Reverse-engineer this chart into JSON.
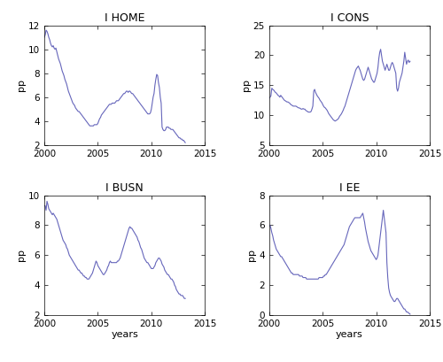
{
  "title_HOME": "I HOME",
  "title_CONS": "I CONS",
  "title_BUSN": "I BUSN",
  "title_EE": "I EE",
  "ylabel": "pp",
  "xlabel": "years",
  "line_color": "#6666bb",
  "xlim": [
    2000,
    2015
  ],
  "HOME_x": [
    2000.0,
    2000.083,
    2000.167,
    2000.25,
    2000.333,
    2000.417,
    2000.5,
    2000.583,
    2000.667,
    2000.75,
    2000.833,
    2000.917,
    2001.0,
    2001.083,
    2001.167,
    2001.25,
    2001.333,
    2001.417,
    2001.5,
    2001.583,
    2001.667,
    2001.75,
    2001.833,
    2001.917,
    2002.0,
    2002.083,
    2002.167,
    2002.25,
    2002.333,
    2002.417,
    2002.5,
    2002.583,
    2002.667,
    2002.75,
    2002.833,
    2002.917,
    2003.0,
    2003.083,
    2003.167,
    2003.25,
    2003.333,
    2003.417,
    2003.5,
    2003.583,
    2003.667,
    2003.75,
    2003.833,
    2003.917,
    2004.0,
    2004.083,
    2004.167,
    2004.25,
    2004.333,
    2004.417,
    2004.5,
    2004.583,
    2004.667,
    2004.75,
    2004.833,
    2004.917,
    2005.0,
    2005.083,
    2005.167,
    2005.25,
    2005.333,
    2005.417,
    2005.5,
    2005.583,
    2005.667,
    2005.75,
    2005.833,
    2005.917,
    2006.0,
    2006.083,
    2006.167,
    2006.25,
    2006.333,
    2006.417,
    2006.5,
    2006.583,
    2006.667,
    2006.75,
    2006.833,
    2006.917,
    2007.0,
    2007.083,
    2007.167,
    2007.25,
    2007.333,
    2007.417,
    2007.5,
    2007.583,
    2007.667,
    2007.75,
    2007.833,
    2007.917,
    2008.0,
    2008.083,
    2008.167,
    2008.25,
    2008.333,
    2008.417,
    2008.5,
    2008.583,
    2008.667,
    2008.75,
    2008.833,
    2008.917,
    2009.0,
    2009.083,
    2009.167,
    2009.25,
    2009.333,
    2009.417,
    2009.5,
    2009.583,
    2009.667,
    2009.75,
    2009.833,
    2009.917,
    2010.0,
    2010.083,
    2010.167,
    2010.25,
    2010.333,
    2010.417,
    2010.5,
    2010.583,
    2010.667,
    2010.75,
    2010.833,
    2010.917,
    2011.0,
    2011.083,
    2011.167,
    2011.25,
    2011.333,
    2011.417,
    2011.5,
    2011.583,
    2011.667,
    2011.75,
    2011.833,
    2011.917,
    2012.0,
    2012.083,
    2012.167,
    2012.25,
    2012.333,
    2012.417,
    2012.5,
    2012.583,
    2012.667,
    2012.75,
    2012.833,
    2012.917,
    2013.0,
    2013.083,
    2013.167
  ],
  "HOME_y": [
    11.0,
    11.2,
    11.6,
    11.5,
    11.3,
    11.0,
    10.8,
    10.5,
    10.3,
    10.2,
    10.3,
    10.1,
    10.0,
    10.1,
    9.8,
    9.5,
    9.2,
    9.0,
    8.8,
    8.5,
    8.2,
    8.0,
    7.8,
    7.5,
    7.3,
    7.1,
    6.8,
    6.5,
    6.3,
    6.1,
    5.9,
    5.7,
    5.5,
    5.4,
    5.3,
    5.1,
    5.0,
    4.9,
    4.8,
    4.8,
    4.7,
    4.6,
    4.5,
    4.4,
    4.3,
    4.2,
    4.1,
    4.0,
    3.9,
    3.8,
    3.7,
    3.6,
    3.6,
    3.6,
    3.6,
    3.6,
    3.7,
    3.7,
    3.7,
    3.7,
    3.8,
    4.0,
    4.2,
    4.3,
    4.5,
    4.6,
    4.7,
    4.8,
    4.9,
    5.0,
    5.1,
    5.2,
    5.3,
    5.4,
    5.4,
    5.4,
    5.5,
    5.5,
    5.5,
    5.5,
    5.6,
    5.7,
    5.7,
    5.7,
    5.8,
    5.9,
    6.0,
    6.1,
    6.2,
    6.3,
    6.3,
    6.4,
    6.5,
    6.5,
    6.4,
    6.5,
    6.5,
    6.4,
    6.3,
    6.3,
    6.2,
    6.1,
    6.0,
    5.9,
    5.8,
    5.7,
    5.6,
    5.5,
    5.4,
    5.3,
    5.2,
    5.1,
    5.0,
    4.9,
    4.8,
    4.7,
    4.6,
    4.6,
    4.6,
    4.7,
    5.0,
    5.5,
    6.0,
    6.3,
    7.0,
    7.5,
    7.9,
    7.8,
    7.2,
    6.8,
    6.0,
    5.5,
    3.5,
    3.3,
    3.2,
    3.2,
    3.3,
    3.5,
    3.5,
    3.5,
    3.4,
    3.4,
    3.3,
    3.3,
    3.3,
    3.2,
    3.1,
    3.0,
    2.9,
    2.8,
    2.7,
    2.6,
    2.6,
    2.5,
    2.5,
    2.4,
    2.4,
    2.3,
    2.2
  ],
  "HOME_ylim": [
    2,
    12
  ],
  "HOME_yticks": [
    2,
    4,
    6,
    8,
    10,
    12
  ],
  "CONS_x": [
    2000.0,
    2000.083,
    2000.167,
    2000.25,
    2000.333,
    2000.417,
    2000.5,
    2000.583,
    2000.667,
    2000.75,
    2000.833,
    2000.917,
    2001.0,
    2001.083,
    2001.167,
    2001.25,
    2001.333,
    2001.417,
    2001.5,
    2001.583,
    2001.667,
    2001.75,
    2001.833,
    2001.917,
    2002.0,
    2002.083,
    2002.167,
    2002.25,
    2002.333,
    2002.417,
    2002.5,
    2002.583,
    2002.667,
    2002.75,
    2002.833,
    2002.917,
    2003.0,
    2003.083,
    2003.167,
    2003.25,
    2003.333,
    2003.417,
    2003.5,
    2003.583,
    2003.667,
    2003.75,
    2003.833,
    2003.917,
    2004.0,
    2004.083,
    2004.167,
    2004.25,
    2004.333,
    2004.417,
    2004.5,
    2004.583,
    2004.667,
    2004.75,
    2004.833,
    2004.917,
    2005.0,
    2005.083,
    2005.167,
    2005.25,
    2005.333,
    2005.417,
    2005.5,
    2005.583,
    2005.667,
    2005.75,
    2005.833,
    2005.917,
    2006.0,
    2006.083,
    2006.167,
    2006.25,
    2006.333,
    2006.417,
    2006.5,
    2006.583,
    2006.667,
    2006.75,
    2006.833,
    2006.917,
    2007.0,
    2007.083,
    2007.167,
    2007.25,
    2007.333,
    2007.417,
    2007.5,
    2007.583,
    2007.667,
    2007.75,
    2007.833,
    2007.917,
    2008.0,
    2008.083,
    2008.167,
    2008.25,
    2008.333,
    2008.417,
    2008.5,
    2008.583,
    2008.667,
    2008.75,
    2008.833,
    2008.917,
    2009.0,
    2009.083,
    2009.167,
    2009.25,
    2009.333,
    2009.417,
    2009.5,
    2009.583,
    2009.667,
    2009.75,
    2009.833,
    2009.917,
    2010.0,
    2010.083,
    2010.167,
    2010.25,
    2010.333,
    2010.417,
    2010.5,
    2010.583,
    2010.667,
    2010.75,
    2010.833,
    2010.917,
    2011.0,
    2011.083,
    2011.167,
    2011.25,
    2011.333,
    2011.417,
    2011.5,
    2011.583,
    2011.667,
    2011.75,
    2011.833,
    2011.917,
    2012.0,
    2012.083,
    2012.167,
    2012.25,
    2012.333,
    2012.417,
    2012.5,
    2012.583,
    2012.667,
    2012.75,
    2012.833,
    2012.917,
    2013.0,
    2013.083,
    2013.167
  ],
  "CONS_y": [
    12.8,
    13.0,
    13.2,
    14.5,
    14.3,
    14.2,
    14.0,
    13.8,
    13.7,
    13.5,
    13.3,
    13.2,
    13.0,
    13.3,
    13.1,
    12.9,
    12.7,
    12.5,
    12.4,
    12.3,
    12.2,
    12.2,
    12.1,
    12.0,
    11.8,
    11.7,
    11.6,
    11.5,
    11.5,
    11.5,
    11.5,
    11.4,
    11.3,
    11.2,
    11.2,
    11.1,
    11.0,
    11.0,
    11.1,
    11.0,
    11.0,
    10.8,
    10.7,
    10.6,
    10.5,
    10.5,
    10.5,
    10.6,
    11.0,
    11.5,
    14.0,
    14.3,
    13.8,
    13.5,
    13.2,
    13.0,
    12.8,
    12.5,
    12.3,
    12.1,
    11.8,
    11.5,
    11.3,
    11.2,
    11.0,
    10.8,
    10.5,
    10.2,
    10.0,
    9.8,
    9.6,
    9.4,
    9.2,
    9.1,
    9.0,
    9.1,
    9.2,
    9.3,
    9.5,
    9.8,
    10.0,
    10.2,
    10.5,
    10.8,
    11.2,
    11.5,
    12.0,
    12.5,
    13.0,
    13.5,
    14.0,
    14.5,
    15.0,
    15.5,
    16.0,
    16.5,
    17.0,
    17.5,
    17.8,
    18.0,
    18.2,
    17.8,
    17.5,
    17.0,
    16.5,
    16.0,
    15.8,
    16.0,
    16.5,
    17.0,
    17.5,
    18.0,
    17.5,
    17.0,
    16.5,
    16.0,
    15.8,
    15.5,
    15.5,
    16.0,
    16.5,
    17.0,
    18.0,
    19.5,
    20.5,
    21.0,
    20.0,
    19.0,
    18.5,
    18.0,
    17.5,
    18.0,
    18.5,
    18.0,
    17.5,
    17.5,
    18.0,
    18.5,
    18.8,
    18.5,
    18.0,
    17.5,
    17.0,
    14.5,
    14.0,
    14.5,
    15.5,
    16.0,
    16.5,
    17.0,
    18.0,
    19.0,
    20.5,
    19.5,
    18.5,
    19.0,
    19.2,
    18.8,
    19.0
  ],
  "CONS_ylim": [
    5,
    25
  ],
  "CONS_yticks": [
    5,
    10,
    15,
    20,
    25
  ],
  "BUSN_x": [
    2000.0,
    2000.083,
    2000.167,
    2000.25,
    2000.333,
    2000.417,
    2000.5,
    2000.583,
    2000.667,
    2000.75,
    2000.833,
    2000.917,
    2001.0,
    2001.083,
    2001.167,
    2001.25,
    2001.333,
    2001.417,
    2001.5,
    2001.583,
    2001.667,
    2001.75,
    2001.833,
    2001.917,
    2002.0,
    2002.083,
    2002.167,
    2002.25,
    2002.333,
    2002.417,
    2002.5,
    2002.583,
    2002.667,
    2002.75,
    2002.833,
    2002.917,
    2003.0,
    2003.083,
    2003.167,
    2003.25,
    2003.333,
    2003.417,
    2003.5,
    2003.583,
    2003.667,
    2003.75,
    2003.833,
    2003.917,
    2004.0,
    2004.083,
    2004.167,
    2004.25,
    2004.333,
    2004.417,
    2004.5,
    2004.583,
    2004.667,
    2004.75,
    2004.833,
    2004.917,
    2005.0,
    2005.083,
    2005.167,
    2005.25,
    2005.333,
    2005.417,
    2005.5,
    2005.583,
    2005.667,
    2005.75,
    2005.833,
    2005.917,
    2006.0,
    2006.083,
    2006.167,
    2006.25,
    2006.333,
    2006.417,
    2006.5,
    2006.583,
    2006.667,
    2006.75,
    2006.833,
    2006.917,
    2007.0,
    2007.083,
    2007.167,
    2007.25,
    2007.333,
    2007.417,
    2007.5,
    2007.583,
    2007.667,
    2007.75,
    2007.833,
    2007.917,
    2008.0,
    2008.083,
    2008.167,
    2008.25,
    2008.333,
    2008.417,
    2008.5,
    2008.583,
    2008.667,
    2008.75,
    2008.833,
    2008.917,
    2009.0,
    2009.083,
    2009.167,
    2009.25,
    2009.333,
    2009.417,
    2009.5,
    2009.583,
    2009.667,
    2009.75,
    2009.833,
    2009.917,
    2010.0,
    2010.083,
    2010.167,
    2010.25,
    2010.333,
    2010.417,
    2010.5,
    2010.583,
    2010.667,
    2010.75,
    2010.833,
    2010.917,
    2011.0,
    2011.083,
    2011.167,
    2011.25,
    2011.333,
    2011.417,
    2011.5,
    2011.583,
    2011.667,
    2011.75,
    2011.833,
    2011.917,
    2012.0,
    2012.083,
    2012.167,
    2012.25,
    2012.333,
    2012.417,
    2012.5,
    2012.583,
    2012.667,
    2012.75,
    2012.833,
    2012.917,
    2013.0,
    2013.083,
    2013.167
  ],
  "BUSN_y": [
    9.3,
    9.3,
    9.0,
    9.6,
    9.4,
    9.1,
    9.0,
    8.9,
    8.8,
    8.7,
    8.8,
    8.7,
    8.6,
    8.5,
    8.4,
    8.2,
    8.0,
    7.8,
    7.6,
    7.4,
    7.2,
    7.0,
    6.9,
    6.8,
    6.7,
    6.5,
    6.4,
    6.2,
    6.0,
    5.9,
    5.8,
    5.7,
    5.6,
    5.5,
    5.4,
    5.3,
    5.2,
    5.1,
    5.0,
    5.0,
    4.9,
    4.8,
    4.8,
    4.7,
    4.6,
    4.6,
    4.5,
    4.5,
    4.4,
    4.4,
    4.4,
    4.5,
    4.6,
    4.7,
    4.8,
    5.0,
    5.2,
    5.4,
    5.6,
    5.5,
    5.3,
    5.2,
    5.1,
    5.0,
    4.9,
    4.8,
    4.7,
    4.7,
    4.8,
    4.9,
    5.0,
    5.2,
    5.3,
    5.5,
    5.6,
    5.5,
    5.5,
    5.5,
    5.5,
    5.5,
    5.5,
    5.5,
    5.6,
    5.6,
    5.7,
    5.8,
    6.0,
    6.2,
    6.4,
    6.6,
    6.8,
    7.0,
    7.2,
    7.4,
    7.6,
    7.8,
    7.9,
    7.8,
    7.8,
    7.7,
    7.6,
    7.5,
    7.4,
    7.3,
    7.2,
    7.0,
    6.9,
    6.7,
    6.5,
    6.4,
    6.2,
    6.0,
    5.8,
    5.7,
    5.6,
    5.5,
    5.5,
    5.4,
    5.3,
    5.2,
    5.1,
    5.1,
    5.1,
    5.2,
    5.3,
    5.5,
    5.6,
    5.7,
    5.8,
    5.8,
    5.7,
    5.6,
    5.4,
    5.3,
    5.2,
    5.0,
    4.9,
    4.8,
    4.7,
    4.7,
    4.6,
    4.5,
    4.4,
    4.4,
    4.3,
    4.2,
    4.0,
    3.9,
    3.7,
    3.6,
    3.5,
    3.4,
    3.4,
    3.3,
    3.3,
    3.3,
    3.2,
    3.1,
    3.1
  ],
  "BUSN_ylim": [
    2,
    10
  ],
  "BUSN_yticks": [
    2,
    4,
    6,
    8,
    10
  ],
  "EE_x": [
    2000.0,
    2000.083,
    2000.167,
    2000.25,
    2000.333,
    2000.417,
    2000.5,
    2000.583,
    2000.667,
    2000.75,
    2000.833,
    2000.917,
    2001.0,
    2001.083,
    2001.167,
    2001.25,
    2001.333,
    2001.417,
    2001.5,
    2001.583,
    2001.667,
    2001.75,
    2001.833,
    2001.917,
    2002.0,
    2002.083,
    2002.167,
    2002.25,
    2002.333,
    2002.417,
    2002.5,
    2002.583,
    2002.667,
    2002.75,
    2002.833,
    2002.917,
    2003.0,
    2003.083,
    2003.167,
    2003.25,
    2003.333,
    2003.417,
    2003.5,
    2003.583,
    2003.667,
    2003.75,
    2003.833,
    2003.917,
    2004.0,
    2004.083,
    2004.167,
    2004.25,
    2004.333,
    2004.417,
    2004.5,
    2004.583,
    2004.667,
    2004.75,
    2004.833,
    2004.917,
    2005.0,
    2005.083,
    2005.167,
    2005.25,
    2005.333,
    2005.417,
    2005.5,
    2005.583,
    2005.667,
    2005.75,
    2005.833,
    2005.917,
    2006.0,
    2006.083,
    2006.167,
    2006.25,
    2006.333,
    2006.417,
    2006.5,
    2006.583,
    2006.667,
    2006.75,
    2006.833,
    2006.917,
    2007.0,
    2007.083,
    2007.167,
    2007.25,
    2007.333,
    2007.417,
    2007.5,
    2007.583,
    2007.667,
    2007.75,
    2007.833,
    2007.917,
    2008.0,
    2008.083,
    2008.167,
    2008.25,
    2008.333,
    2008.417,
    2008.5,
    2008.583,
    2008.667,
    2008.75,
    2008.833,
    2008.917,
    2009.0,
    2009.083,
    2009.167,
    2009.25,
    2009.333,
    2009.417,
    2009.5,
    2009.583,
    2009.667,
    2009.75,
    2009.833,
    2009.917,
    2010.0,
    2010.083,
    2010.167,
    2010.25,
    2010.333,
    2010.417,
    2010.5,
    2010.583,
    2010.667,
    2010.75,
    2010.833,
    2010.917,
    2011.0,
    2011.083,
    2011.167,
    2011.25,
    2011.333,
    2011.417,
    2011.5,
    2011.583,
    2011.667,
    2011.75,
    2011.833,
    2011.917,
    2012.0,
    2012.083,
    2012.167,
    2012.25,
    2012.333,
    2012.417,
    2012.5,
    2012.583,
    2012.667,
    2012.75,
    2012.833,
    2012.917,
    2013.0,
    2013.083,
    2013.167
  ],
  "EE_y": [
    5.9,
    6.0,
    5.8,
    5.5,
    5.3,
    5.0,
    4.8,
    4.6,
    4.4,
    4.3,
    4.2,
    4.1,
    4.0,
    3.9,
    3.9,
    3.8,
    3.7,
    3.6,
    3.5,
    3.4,
    3.3,
    3.2,
    3.1,
    3.0,
    2.9,
    2.8,
    2.8,
    2.7,
    2.7,
    2.7,
    2.7,
    2.7,
    2.7,
    2.7,
    2.6,
    2.6,
    2.6,
    2.6,
    2.5,
    2.5,
    2.5,
    2.5,
    2.4,
    2.4,
    2.4,
    2.4,
    2.4,
    2.4,
    2.4,
    2.4,
    2.4,
    2.4,
    2.4,
    2.4,
    2.4,
    2.4,
    2.5,
    2.5,
    2.5,
    2.5,
    2.5,
    2.6,
    2.6,
    2.7,
    2.7,
    2.8,
    2.9,
    3.0,
    3.1,
    3.2,
    3.3,
    3.4,
    3.5,
    3.6,
    3.7,
    3.8,
    3.9,
    4.0,
    4.1,
    4.2,
    4.3,
    4.4,
    4.5,
    4.6,
    4.7,
    4.9,
    5.1,
    5.3,
    5.5,
    5.7,
    5.9,
    6.0,
    6.1,
    6.2,
    6.3,
    6.4,
    6.5,
    6.5,
    6.5,
    6.5,
    6.5,
    6.5,
    6.5,
    6.6,
    6.7,
    6.8,
    6.5,
    6.2,
    5.8,
    5.5,
    5.2,
    4.9,
    4.7,
    4.5,
    4.3,
    4.2,
    4.1,
    4.0,
    3.9,
    3.8,
    3.7,
    3.8,
    4.0,
    4.5,
    5.0,
    5.5,
    6.0,
    6.5,
    7.0,
    6.5,
    6.0,
    5.5,
    3.5,
    2.5,
    1.8,
    1.5,
    1.3,
    1.2,
    1.1,
    1.0,
    0.9,
    0.9,
    1.0,
    1.1,
    1.1,
    1.0,
    0.9,
    0.8,
    0.7,
    0.6,
    0.5,
    0.4,
    0.4,
    0.3,
    0.2,
    0.2,
    0.15,
    0.1,
    0.05
  ],
  "EE_ylim": [
    0,
    8
  ],
  "EE_yticks": [
    0,
    2,
    4,
    6,
    8
  ]
}
